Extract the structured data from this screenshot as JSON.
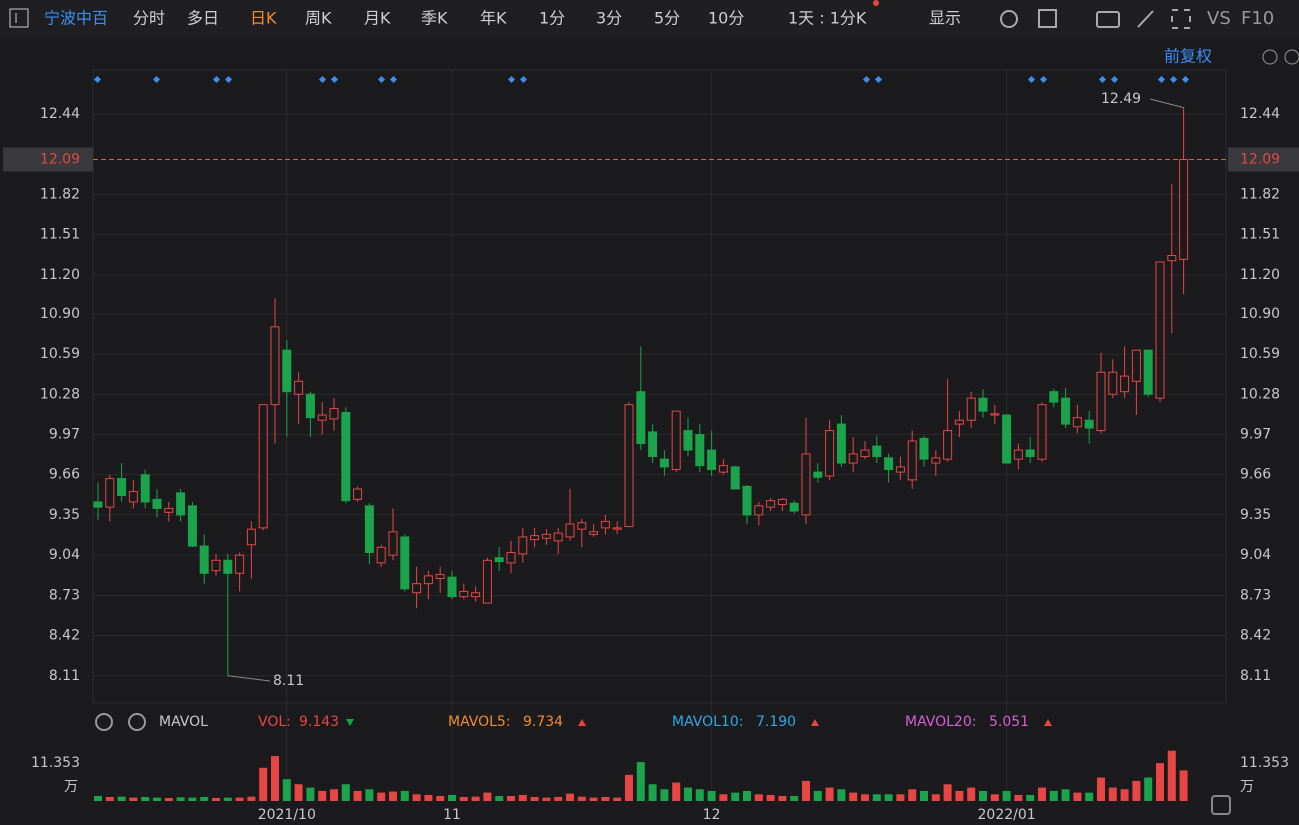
{
  "toolbar": {
    "stock": "宁波中百",
    "tabs": [
      "分时",
      "多日",
      "日K",
      "周K",
      "月K",
      "季K",
      "年K",
      "1分",
      "3分",
      "5分",
      "10分"
    ],
    "active": "日K",
    "period": "1天 : 1分K",
    "display": "显示",
    "vs": "VS",
    "f10": "F10",
    "adjust": "前复权"
  },
  "chart_data": {
    "type": "candlestick",
    "categories": [
      null,
      null,
      null,
      null,
      null,
      null,
      null,
      null,
      null,
      null,
      null,
      null,
      null,
      null,
      null,
      null,
      "2021/10",
      null,
      null,
      null,
      null,
      null,
      null,
      null,
      null,
      null,
      null,
      null,
      null,
      null,
      "11",
      null,
      null,
      null,
      null,
      null,
      null,
      null,
      null,
      null,
      null,
      null,
      null,
      null,
      null,
      null,
      null,
      null,
      null,
      null,
      null,
      null,
      "12",
      null,
      null,
      null,
      null,
      null,
      null,
      null,
      null,
      null,
      null,
      null,
      null,
      null,
      null,
      null,
      null,
      null,
      null,
      null,
      null,
      null,
      null,
      null,
      null,
      "2022/01",
      null,
      null,
      null,
      null,
      null,
      null,
      null,
      null,
      null,
      null,
      null,
      null,
      null,
      null,
      null
    ],
    "open": [
      9.45,
      9.41,
      9.63,
      9.45,
      9.66,
      9.47,
      9.37,
      9.52,
      9.42,
      9.11,
      8.92,
      9.0,
      8.9,
      9.12,
      9.25,
      10.2,
      10.62,
      10.28,
      10.28,
      10.08,
      10.09,
      10.14,
      9.47,
      9.42,
      8.98,
      9.04,
      9.18,
      8.75,
      8.82,
      8.86,
      8.87,
      8.72,
      8.72,
      8.67,
      9.02,
      8.98,
      9.05,
      9.16,
      9.17,
      9.15,
      9.18,
      9.24,
      9.2,
      9.25,
      9.24,
      9.26,
      10.3,
      9.99,
      9.78,
      9.7,
      10.0,
      9.97,
      9.85,
      9.68,
      9.72,
      9.57,
      9.35,
      9.41,
      9.43,
      9.44,
      9.35,
      9.68,
      9.65,
      10.05,
      9.75,
      9.8,
      9.88,
      9.79,
      9.68,
      9.62,
      9.94,
      9.75,
      9.78,
      10.05,
      10.08,
      10.25,
      10.12,
      10.12,
      9.78,
      9.85,
      9.78,
      10.3,
      10.25,
      10.03,
      10.08,
      10.0,
      10.28,
      10.3,
      10.38,
      10.62,
      10.25,
      11.31,
      11.32
    ],
    "high": [
      9.6,
      9.66,
      9.75,
      9.62,
      9.7,
      9.55,
      9.45,
      9.55,
      9.45,
      9.2,
      9.05,
      9.05,
      9.06,
      9.3,
      10.2,
      11.02,
      10.7,
      10.45,
      10.3,
      10.22,
      10.25,
      10.18,
      9.57,
      9.44,
      9.12,
      9.4,
      9.2,
      8.95,
      8.92,
      8.95,
      8.92,
      8.82,
      8.8,
      9.02,
      9.1,
      9.15,
      9.25,
      9.25,
      9.24,
      9.25,
      9.55,
      9.32,
      9.28,
      9.35,
      9.3,
      10.22,
      10.65,
      10.05,
      9.85,
      10.15,
      10.1,
      10.05,
      10.0,
      9.78,
      9.73,
      9.58,
      9.45,
      9.48,
      9.48,
      9.46,
      10.1,
      9.75,
      10.08,
      10.12,
      9.95,
      9.92,
      9.96,
      9.82,
      9.8,
      10.0,
      9.96,
      9.85,
      10.4,
      10.15,
      10.3,
      10.32,
      10.2,
      10.13,
      9.9,
      9.95,
      10.22,
      10.32,
      10.33,
      10.2,
      10.15,
      10.6,
      10.55,
      10.65,
      10.62,
      10.62,
      11.3,
      11.9,
      12.49
    ],
    "low": [
      9.31,
      9.3,
      9.45,
      9.4,
      9.4,
      9.33,
      9.3,
      9.3,
      9.1,
      8.82,
      8.88,
      8.11,
      8.76,
      8.86,
      9.23,
      9.9,
      9.95,
      10.05,
      9.95,
      9.97,
      10.0,
      9.44,
      9.45,
      8.97,
      8.95,
      9.0,
      8.76,
      8.63,
      8.7,
      8.75,
      8.7,
      8.7,
      8.68,
      8.67,
      8.92,
      8.9,
      8.98,
      9.1,
      9.12,
      9.05,
      9.15,
      9.1,
      9.18,
      9.2,
      9.2,
      9.26,
      9.85,
      9.75,
      9.65,
      9.68,
      9.8,
      9.68,
      9.65,
      9.66,
      9.55,
      9.28,
      9.27,
      9.38,
      9.38,
      9.36,
      9.28,
      9.6,
      9.62,
      9.72,
      9.68,
      9.78,
      9.75,
      9.6,
      9.62,
      9.55,
      9.72,
      9.65,
      9.76,
      9.95,
      10.02,
      10.1,
      10.05,
      9.75,
      9.7,
      9.75,
      9.76,
      10.18,
      10.02,
      9.98,
      9.9,
      9.98,
      10.25,
      10.25,
      10.12,
      10.26,
      10.22,
      10.75,
      11.05
    ],
    "close": [
      9.41,
      9.63,
      9.5,
      9.53,
      9.45,
      9.4,
      9.4,
      9.35,
      9.11,
      8.9,
      9.0,
      8.9,
      9.04,
      9.24,
      10.2,
      10.8,
      10.3,
      10.38,
      10.1,
      10.12,
      10.17,
      9.46,
      9.55,
      9.06,
      9.1,
      9.22,
      8.78,
      8.82,
      8.88,
      8.89,
      8.72,
      8.76,
      8.75,
      9.0,
      8.99,
      9.06,
      9.18,
      9.19,
      9.2,
      9.21,
      9.28,
      9.29,
      9.22,
      9.3,
      9.25,
      10.2,
      9.9,
      9.8,
      9.72,
      10.15,
      9.85,
      9.73,
      9.7,
      9.73,
      9.55,
      9.35,
      9.42,
      9.46,
      9.47,
      9.38,
      9.82,
      9.64,
      10.0,
      9.75,
      9.82,
      9.85,
      9.8,
      9.7,
      9.72,
      9.92,
      9.78,
      9.79,
      10.0,
      10.08,
      10.25,
      10.15,
      10.13,
      9.75,
      9.85,
      9.8,
      10.2,
      10.22,
      10.05,
      10.1,
      10.02,
      10.45,
      10.45,
      10.42,
      10.62,
      10.28,
      11.3,
      11.35,
      12.09
    ],
    "volume": [
      1.5,
      1.2,
      1.3,
      1.0,
      1.2,
      1.0,
      0.9,
      1.1,
      1.0,
      1.2,
      0.9,
      1.0,
      1.0,
      1.3,
      9.9,
      13.4,
      6.5,
      5.0,
      4.0,
      3.0,
      3.5,
      5.0,
      3.0,
      3.5,
      2.5,
      2.8,
      3.0,
      2.0,
      1.8,
      1.5,
      1.8,
      1.2,
      1.3,
      2.5,
      1.5,
      1.5,
      1.8,
      1.2,
      1.0,
      1.2,
      2.2,
      1.3,
      1.0,
      1.2,
      1.0,
      7.8,
      11.6,
      5.0,
      3.5,
      5.5,
      4.0,
      3.5,
      3.0,
      2.0,
      2.5,
      3.0,
      2.0,
      1.8,
      1.5,
      1.5,
      6.0,
      3.0,
      4.0,
      3.5,
      2.5,
      2.0,
      2.0,
      2.0,
      2.0,
      3.5,
      3.0,
      2.0,
      5.0,
      3.0,
      4.0,
      3.0,
      2.0,
      3.0,
      1.8,
      1.8,
      4.0,
      3.0,
      3.5,
      2.5,
      2.5,
      7.0,
      4.0,
      3.5,
      6.0,
      7.0,
      11.3,
      15.0,
      9.143
    ],
    "up_color": "#e84545",
    "down_color": "#1ba44b",
    "ylim": [
      7.9,
      12.78
    ],
    "yticks": [
      8.11,
      8.42,
      8.73,
      9.04,
      9.35,
      9.66,
      9.97,
      10.28,
      10.59,
      {
        "value": 10.9,
        "label": "10.90"
      },
      {
        "value": 11.2,
        "label": "11.20"
      },
      11.51,
      11.82,
      12.44
    ],
    "last_price": 12.09,
    "max_price": 12.49,
    "min_price": 8.11,
    "vlim": [
      0,
      16.7
    ],
    "vticks": [
      11.353
    ],
    "volume_unit": "万",
    "indicator": "MAVOL",
    "vol_label": "VOL:",
    "indicators": [
      {
        "name": "MAVOL5:",
        "value": 9.734,
        "color": "#f08c2e"
      },
      {
        "name": "MAVOL10:",
        "value": 7.19,
        "value_label": "7.190",
        "color": "#2ea8e6"
      },
      {
        "name": "MAVOL20:",
        "value": 5.051,
        "color": "#d45fd4"
      }
    ],
    "grid": true
  }
}
